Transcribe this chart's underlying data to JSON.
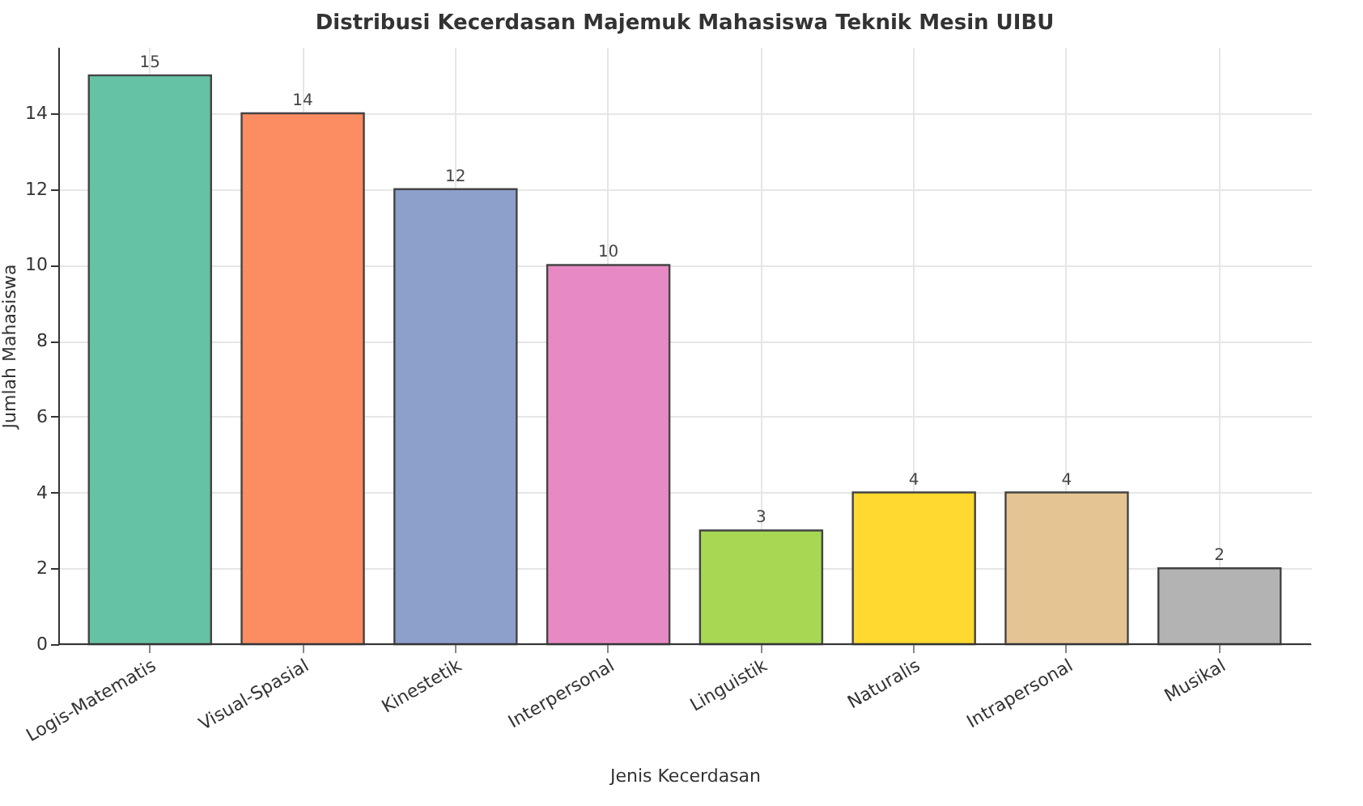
{
  "chart_data": {
    "type": "bar",
    "title": "Distribusi Kecerdasan Majemuk Mahasiswa Teknik Mesin UIBU",
    "xlabel": "Jenis Kecerdasan",
    "ylabel": "Jumlah Mahasiswa",
    "categories": [
      "Logis-Matematis",
      "Visual-Spasial",
      "Kinestetik",
      "Interpersonal",
      "Linguistik",
      "Naturalis",
      "Intrapersonal",
      "Musikal"
    ],
    "values": [
      15,
      14,
      12,
      10,
      3,
      4,
      4,
      2
    ],
    "colors": [
      "#66c2a5",
      "#fc8d62",
      "#8da0cb",
      "#e78ac3",
      "#a6d854",
      "#ffd92f",
      "#e5c494",
      "#b3b3b3"
    ],
    "ylim": [
      0,
      15.75
    ],
    "yticks": [
      0,
      2,
      4,
      6,
      8,
      10,
      12,
      14
    ],
    "grid": true,
    "data_labels": true
  }
}
